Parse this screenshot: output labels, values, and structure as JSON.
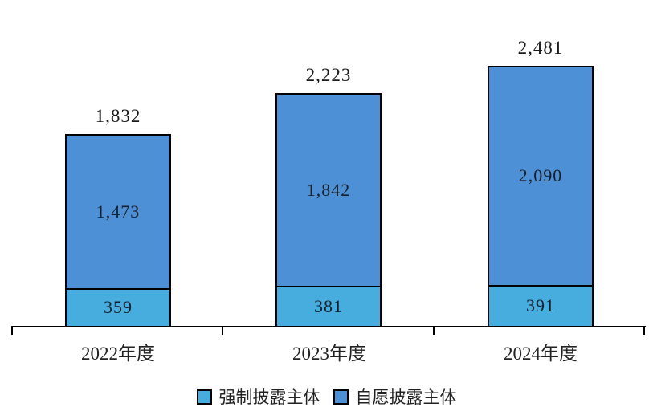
{
  "chart_data": {
    "type": "bar",
    "stacked": true,
    "title": "",
    "categories": [
      "2022年度",
      "2023年度",
      "2024年度"
    ],
    "series": [
      {
        "name": "强制披露主体",
        "color": "#47ACDE",
        "values": [
          359,
          381,
          391
        ],
        "labels": [
          "359",
          "381",
          "391"
        ]
      },
      {
        "name": "自愿披露主体",
        "color": "#4E90D5",
        "values": [
          1473,
          1842,
          2090
        ],
        "labels": [
          "1,473",
          "1,842",
          "2,090"
        ]
      }
    ],
    "totals": [
      1832,
      2223,
      2481
    ],
    "total_labels": [
      "1,832",
      "2,223",
      "2,481"
    ],
    "ylim": [
      0,
      2600
    ],
    "grid": false,
    "legend_position": "bottom",
    "axis_color": "#000000",
    "label_color": "#1a1a1a"
  }
}
